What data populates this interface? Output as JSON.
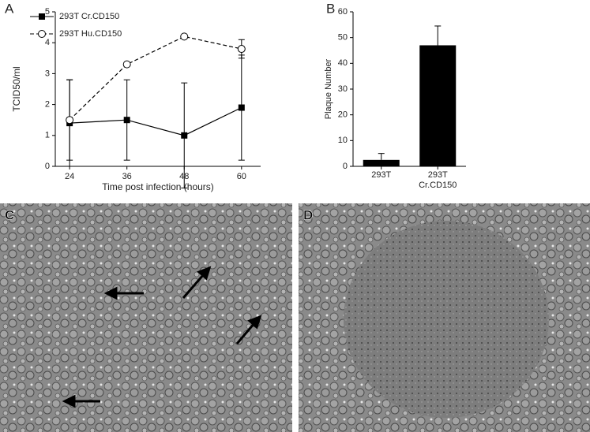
{
  "chart_data": [
    {
      "type": "line",
      "panel": "A",
      "xlabel": "Time post infection (hours)",
      "ylabel": "TCID50/ml",
      "x": [
        24,
        36,
        48,
        60
      ],
      "xlim": [
        21,
        64
      ],
      "xticks": [
        24,
        36,
        48,
        60
      ],
      "ylim": [
        0,
        5
      ],
      "yticks": [
        0,
        1,
        2,
        3,
        4,
        5
      ],
      "legend": "upper left",
      "series": [
        {
          "name": "293T Cr.CD150",
          "color": "#000000",
          "marker": "square",
          "dashed": false,
          "values": [
            1.4,
            1.5,
            1.0,
            1.9
          ],
          "errors": [
            1.4,
            1.3,
            1.7,
            1.7
          ]
        },
        {
          "name": "293T Hu.CD150",
          "color": "#000000",
          "marker": "circle",
          "dashed": true,
          "values": [
            1.5,
            3.3,
            4.2,
            3.8
          ],
          "errors": [
            1.3,
            null,
            null,
            0.3
          ]
        }
      ]
    },
    {
      "type": "bar",
      "panel": "B",
      "ylabel": "Plaque Number",
      "categories": [
        "293T",
        "293T Cr.CD150"
      ],
      "values": [
        2.5,
        47
      ],
      "errors": [
        2.5,
        7.5
      ],
      "color": "#000000",
      "ylim": [
        0,
        60
      ],
      "yticks": [
        0,
        10,
        20,
        30,
        40,
        50,
        60
      ]
    }
  ],
  "images": [
    {
      "panel": "C"
    },
    {
      "panel": "D"
    }
  ]
}
